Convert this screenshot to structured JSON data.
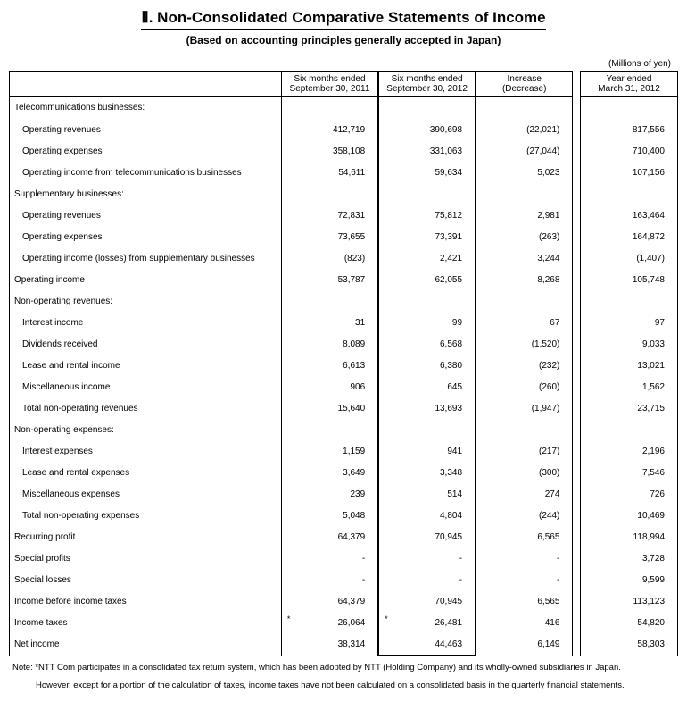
{
  "title": "Ⅱ. Non-Consolidated Comparative Statements of Income",
  "subtitle": "(Based on accounting principles generally accepted in Japan)",
  "unit": "(Millions of yen)",
  "headers": {
    "label": "",
    "c1": "Six months ended\nSeptember 30, 2011",
    "c2": "Six months ended\nSeptember 30, 2012",
    "c3": "Increase\n(Decrease)",
    "c4": "Year ended\nMarch 31, 2012"
  },
  "rows": [
    {
      "label": "Telecommunications businesses:",
      "indent": 0,
      "c1": "",
      "c2": "",
      "c3": "",
      "c4": ""
    },
    {
      "label": "Operating revenues",
      "indent": 1,
      "c1": "412,719",
      "c2": "390,698",
      "c3": "(22,021)",
      "c4": "817,556"
    },
    {
      "label": "Operating expenses",
      "indent": 1,
      "c1": "358,108",
      "c2": "331,063",
      "c3": "(27,044)",
      "c4": "710,400"
    },
    {
      "label": "Operating income from telecommunications businesses",
      "indent": 1,
      "c1": "54,611",
      "c2": "59,634",
      "c3": "5,023",
      "c4": "107,156"
    },
    {
      "label": "Supplementary businesses:",
      "indent": 0,
      "c1": "",
      "c2": "",
      "c3": "",
      "c4": ""
    },
    {
      "label": "Operating revenues",
      "indent": 1,
      "c1": "72,831",
      "c2": "75,812",
      "c3": "2,981",
      "c4": "163,464"
    },
    {
      "label": "Operating expenses",
      "indent": 1,
      "c1": "73,655",
      "c2": "73,391",
      "c3": "(263)",
      "c4": "164,872"
    },
    {
      "label": "Operating income (losses) from supplementary businesses",
      "indent": 1,
      "c1": "(823)",
      "c2": "2,421",
      "c3": "3,244",
      "c4": "(1,407)"
    },
    {
      "label": "Operating income",
      "indent": 0,
      "c1": "53,787",
      "c2": "62,055",
      "c3": "8,268",
      "c4": "105,748"
    },
    {
      "label": "Non-operating revenues:",
      "indent": 0,
      "c1": "",
      "c2": "",
      "c3": "",
      "c4": ""
    },
    {
      "label": "Interest income",
      "indent": 1,
      "c1": "31",
      "c2": "99",
      "c3": "67",
      "c4": "97"
    },
    {
      "label": "Dividends received",
      "indent": 1,
      "c1": "8,089",
      "c2": "6,568",
      "c3": "(1,520)",
      "c4": "9,033"
    },
    {
      "label": "Lease and rental income",
      "indent": 1,
      "c1": "6,613",
      "c2": "6,380",
      "c3": "(232)",
      "c4": "13,021"
    },
    {
      "label": "Miscellaneous income",
      "indent": 1,
      "c1": "906",
      "c2": "645",
      "c3": "(260)",
      "c4": "1,562"
    },
    {
      "label": "Total non-operating revenues",
      "indent": 1,
      "c1": "15,640",
      "c2": "13,693",
      "c3": "(1,947)",
      "c4": "23,715"
    },
    {
      "label": "Non-operating expenses:",
      "indent": 0,
      "c1": "",
      "c2": "",
      "c3": "",
      "c4": ""
    },
    {
      "label": "Interest expenses",
      "indent": 1,
      "c1": "1,159",
      "c2": "941",
      "c3": "(217)",
      "c4": "2,196"
    },
    {
      "label": "Lease and rental expenses",
      "indent": 1,
      "c1": "3,649",
      "c2": "3,348",
      "c3": "(300)",
      "c4": "7,546"
    },
    {
      "label": "Miscellaneous expenses",
      "indent": 1,
      "c1": "239",
      "c2": "514",
      "c3": "274",
      "c4": "726"
    },
    {
      "label": "Total non-operating expenses",
      "indent": 1,
      "c1": "5,048",
      "c2": "4,804",
      "c3": "(244)",
      "c4": "10,469"
    },
    {
      "label": "Recurring profit",
      "indent": 0,
      "c1": "64,379",
      "c2": "70,945",
      "c3": "6,565",
      "c4": "118,994"
    },
    {
      "label": "Special profits",
      "indent": 0,
      "c1": "-",
      "c2": "-",
      "c3": "-",
      "c4": "3,728"
    },
    {
      "label": "Special losses",
      "indent": 0,
      "c1": "-",
      "c2": "-",
      "c3": "-",
      "c4": "9,599"
    },
    {
      "label": "Income before income taxes",
      "indent": 0,
      "c1": "64,379",
      "c2": "70,945",
      "c3": "6,565",
      "c4": "113,123"
    },
    {
      "label": "Income taxes",
      "indent": 0,
      "c1": "26,064",
      "c2": "26,481",
      "c3": "416",
      "c4": "54,820",
      "ast1": true,
      "ast2": true
    },
    {
      "label": "Net income",
      "indent": 0,
      "c1": "38,314",
      "c2": "44,463",
      "c3": "6,149",
      "c4": "58,303",
      "last": true
    }
  ],
  "note1": "Note: *NTT Com participates in a consolidated tax return system, which has been adopted by NTT (Holding Company) and its wholly-owned subsidiaries in Japan.",
  "note2": "However, except for a portion of the calculation of taxes, income taxes have not been calculated on a consolidated basis in the quarterly financial statements.",
  "style": {
    "background": "#ffffff",
    "text_color": "#000000",
    "border_color": "#000000",
    "title_fontsize": 17,
    "body_fontsize": 10,
    "font_family": "Arial"
  }
}
